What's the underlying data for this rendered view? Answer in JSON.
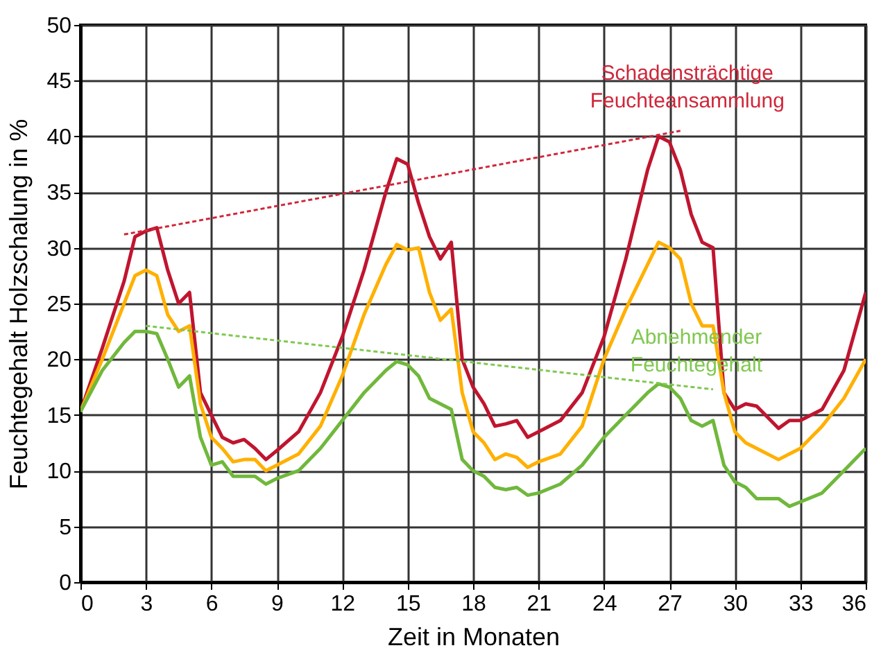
{
  "chart_data": {
    "type": "line",
    "xlabel": "Zeit in Monaten",
    "ylabel": "Feuchtegehalt Holzschalung in %",
    "x": [
      0,
      1,
      2,
      2.5,
      3,
      3.5,
      4,
      4.5,
      5,
      5.5,
      6,
      6.5,
      7,
      7.5,
      8,
      8.5,
      9,
      10,
      11,
      12,
      13,
      14,
      14.5,
      15,
      15.5,
      16,
      16.5,
      17,
      17.5,
      18,
      18.5,
      19,
      19.5,
      20,
      20.5,
      21,
      22,
      23,
      24,
      25,
      26,
      26.5,
      27,
      27.5,
      28,
      28.5,
      29,
      29.5,
      30,
      30.5,
      31,
      32,
      32.5,
      33,
      34,
      35,
      36
    ],
    "series": [
      {
        "color": "#c0152f",
        "values": [
          15.3,
          21,
          27,
          31,
          31.5,
          31.8,
          28,
          25,
          26,
          17,
          15,
          13,
          12.5,
          12.8,
          12,
          11,
          11.8,
          13.5,
          17,
          22,
          28,
          35,
          38,
          37.5,
          34,
          31,
          29,
          30.5,
          20,
          17.5,
          16,
          14,
          14.2,
          14.5,
          13,
          13.5,
          14.5,
          17,
          22,
          29,
          37,
          40,
          39.5,
          37,
          33,
          30.5,
          30,
          17,
          15.5,
          16,
          15.8,
          13.8,
          14.5,
          14.5,
          15.5,
          19,
          26
        ]
      },
      {
        "color": "#ffb000",
        "values": [
          15.3,
          20,
          25,
          27.5,
          28,
          27.5,
          24,
          22.5,
          23,
          16,
          13,
          12,
          10.8,
          11,
          11,
          10,
          10.5,
          11.5,
          14,
          18.5,
          24,
          28.5,
          30.3,
          29.8,
          30,
          26,
          23.5,
          24.5,
          17,
          13.5,
          12.5,
          11,
          11.5,
          11.2,
          10.3,
          10.8,
          11.5,
          14,
          20,
          24.5,
          28.5,
          30.5,
          30,
          29,
          25,
          23,
          23,
          17,
          13.5,
          12.5,
          12,
          11,
          11.5,
          12,
          14,
          16.5,
          20
        ]
      },
      {
        "color": "#70b83c",
        "values": [
          15.3,
          19,
          21.5,
          22.5,
          22.5,
          22.3,
          20,
          17.5,
          18.5,
          13,
          10.5,
          10.8,
          9.5,
          9.5,
          9.5,
          8.8,
          9.3,
          10,
          12,
          14.5,
          17,
          19,
          19.8,
          19.5,
          18.5,
          16.5,
          16,
          15.5,
          11,
          10,
          9.5,
          8.5,
          8.3,
          8.5,
          7.8,
          8,
          8.8,
          10.5,
          13,
          15,
          17,
          17.8,
          17.5,
          16.5,
          14.5,
          14,
          14.5,
          10.5,
          9,
          8.5,
          7.5,
          7.5,
          6.8,
          7.2,
          8,
          10,
          12
        ]
      },
      {
        "type": "line",
        "line_style": "dashed",
        "color": "#d0263a",
        "x": [
          2,
          27.5
        ],
        "values": [
          31.2,
          40.5
        ]
      },
      {
        "type": "line",
        "line_style": "dashed",
        "color": "#80c850",
        "x": [
          3,
          29
        ],
        "values": [
          23,
          17.3
        ]
      }
    ],
    "xlim": [
      0,
      36
    ],
    "xticks": [
      0,
      3,
      6,
      9,
      12,
      15,
      18,
      21,
      24,
      27,
      30,
      33,
      36
    ],
    "ylim": [
      0,
      50
    ],
    "yticks": [
      0,
      5,
      10,
      15,
      20,
      25,
      30,
      35,
      40,
      45,
      50
    ],
    "grid": true,
    "line_style": "solid",
    "annotations": [
      "Schadensträchtige\nFeuchteansammlung",
      "Abnehmender\nFeuchtegehalt"
    ]
  }
}
